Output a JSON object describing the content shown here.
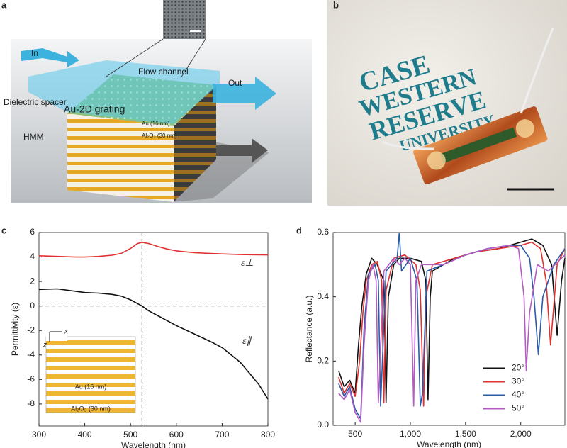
{
  "panel_labels": [
    "a",
    "b",
    "c",
    "d"
  ],
  "illustration": {
    "labels": [
      "In",
      "Flow channel",
      "Out",
      "Dielectric spacer",
      "Au-2D grating",
      "Au (16 nm)",
      "Al₂O₃ (30 nm)",
      "HMM"
    ]
  },
  "photo": {
    "text": [
      "CASE",
      "WESTERN",
      "RESERVE",
      "UNIVERSITY"
    ]
  },
  "chart_data": [
    {
      "type": "line",
      "x_label": "Wavelength (nm)",
      "y_label": "Permittivity (ε)",
      "xlim": [
        300,
        800
      ],
      "ylim": [
        -9.8,
        6
      ],
      "xticks": [
        300,
        400,
        500,
        600,
        700,
        800
      ],
      "yticks": [
        -8,
        -6,
        -4,
        -2,
        0,
        2,
        4,
        6
      ],
      "reference_lines": {
        "x": 525,
        "y": 0
      },
      "series_labels": "inline",
      "x": [
        300,
        340,
        380,
        400,
        430,
        460,
        480,
        500,
        515,
        525,
        540,
        560,
        580,
        600,
        640,
        680,
        700,
        740,
        780,
        800
      ],
      "series": [
        {
          "name": "ε⊥",
          "color": "#e0302f",
          "values": [
            4.1,
            4.05,
            4.0,
            4.0,
            4.05,
            4.15,
            4.3,
            4.7,
            5.1,
            5.2,
            5.1,
            4.85,
            4.65,
            4.5,
            4.35,
            4.28,
            4.25,
            4.2,
            4.18,
            4.17
          ]
        },
        {
          "name": "ε∥",
          "color": "#111111",
          "values": [
            1.35,
            1.4,
            1.2,
            1.1,
            1.05,
            0.95,
            0.8,
            0.5,
            0.2,
            0.0,
            -0.4,
            -0.8,
            -1.2,
            -1.6,
            -2.3,
            -3.0,
            -3.4,
            -4.6,
            -6.4,
            -7.6
          ]
        }
      ],
      "inset": {
        "labels": [
          "x",
          "z",
          "Au (16 nm)",
          "Al₂O₃ (30 nm)"
        ]
      }
    },
    {
      "type": "line",
      "x_label": "Wavelength (nm)",
      "y_label": "Reflectance (a.u.)",
      "xlim": [
        300,
        2400
      ],
      "ylim": [
        0,
        0.6
      ],
      "xticks": [
        500,
        {
          "value": 1000,
          "label": "1,000"
        },
        {
          "value": 1500,
          "label": "1,500"
        },
        {
          "value": 2000,
          "label": "2,000"
        }
      ],
      "yticks": [
        {
          "value": 0,
          "label": "0.0"
        },
        0.2,
        0.4,
        0.6
      ],
      "legend": "lower right",
      "series": [
        {
          "name": "20°",
          "color": "#111111",
          "x": [
            350,
            400,
            450,
            500,
            530,
            560,
            600,
            650,
            700,
            760,
            780,
            800,
            850,
            900,
            1000,
            1100,
            1140,
            1160,
            1180,
            1200,
            1400,
            1600,
            1800,
            2000,
            2100,
            2200,
            2280,
            2330,
            2370,
            2400
          ],
          "values": [
            0.17,
            0.12,
            0.14,
            0.1,
            0.25,
            0.37,
            0.47,
            0.52,
            0.5,
            0.45,
            0.07,
            0.4,
            0.5,
            0.52,
            0.52,
            0.51,
            0.45,
            0.08,
            0.4,
            0.48,
            0.52,
            0.54,
            0.55,
            0.57,
            0.58,
            0.56,
            0.5,
            0.28,
            0.45,
            0.52
          ]
        },
        {
          "name": "30°",
          "color": "#e0302f",
          "x": [
            350,
            400,
            450,
            500,
            540,
            570,
            600,
            650,
            700,
            740,
            760,
            780,
            850,
            950,
            1050,
            1090,
            1120,
            1140,
            1200,
            1400,
            1600,
            1800,
            2000,
            2100,
            2180,
            2230,
            2270,
            2330,
            2400
          ],
          "values": [
            0.15,
            0.1,
            0.13,
            0.09,
            0.2,
            0.35,
            0.45,
            0.5,
            0.51,
            0.45,
            0.07,
            0.42,
            0.52,
            0.53,
            0.5,
            0.42,
            0.06,
            0.4,
            0.5,
            0.52,
            0.54,
            0.55,
            0.56,
            0.57,
            0.55,
            0.45,
            0.25,
            0.5,
            0.55
          ]
        },
        {
          "name": "40°",
          "color": "#2a5ba8",
          "x": [
            350,
            400,
            450,
            500,
            550,
            580,
            620,
            680,
            710,
            730,
            780,
            880,
            900,
            920,
            1000,
            1060,
            1090,
            1110,
            1150,
            1300,
            1500,
            1700,
            1900,
            2000,
            2080,
            2120,
            2160,
            2200,
            2300,
            2400
          ],
          "values": [
            0.13,
            0.09,
            0.12,
            0.05,
            0.02,
            0.3,
            0.47,
            0.5,
            0.45,
            0.06,
            0.48,
            0.52,
            0.6,
            0.48,
            0.52,
            0.45,
            0.06,
            0.1,
            0.48,
            0.5,
            0.53,
            0.55,
            0.56,
            0.56,
            0.52,
            0.4,
            0.22,
            0.4,
            0.5,
            0.55
          ]
        },
        {
          "name": "50°",
          "color": "#b35cc2",
          "x": [
            350,
            400,
            450,
            500,
            550,
            580,
            620,
            660,
            690,
            710,
            760,
            850,
            900,
            950,
            1000,
            1030,
            1050,
            1100,
            1300,
            1500,
            1700,
            1900,
            1980,
            2030,
            2050,
            2080,
            2150,
            2250,
            2400
          ],
          "values": [
            0.1,
            0.08,
            0.11,
            0.04,
            0.01,
            0.25,
            0.45,
            0.5,
            0.45,
            0.07,
            0.48,
            0.52,
            0.5,
            0.52,
            0.5,
            0.06,
            0.45,
            0.5,
            0.5,
            0.53,
            0.55,
            0.56,
            0.55,
            0.4,
            0.17,
            0.35,
            0.5,
            0.48,
            0.53
          ]
        }
      ]
    }
  ]
}
